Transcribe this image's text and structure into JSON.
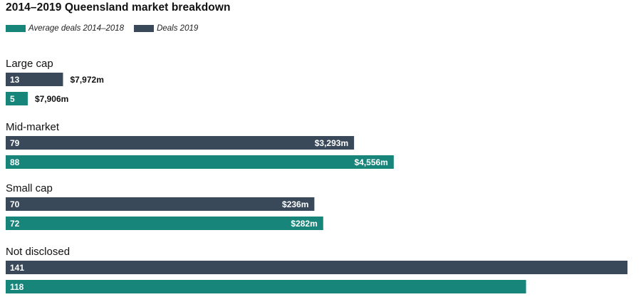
{
  "chart_data": {
    "type": "bar",
    "orientation": "horizontal",
    "title": "2014–2019 Queensland market breakdown",
    "legend_position": "top-left",
    "grid": false,
    "xlim": [
      0,
      141
    ],
    "series": [
      {
        "name": "Average deals 2014–2018",
        "color": "#17857a"
      },
      {
        "name": "Deals 2019",
        "color": "#39495a"
      }
    ],
    "categories": [
      {
        "label": "Large cap",
        "bars": [
          {
            "series": "Deals 2019",
            "count": 13,
            "count_label": "13",
            "value_label": "$7,972m"
          },
          {
            "series": "Average deals 2014–2018",
            "count": 5,
            "count_label": "5",
            "value_label": "$7,906m"
          }
        ]
      },
      {
        "label": "Mid-market",
        "bars": [
          {
            "series": "Deals 2019",
            "count": 79,
            "count_label": "79",
            "value_label": "$3,293m"
          },
          {
            "series": "Average deals 2014–2018",
            "count": 88,
            "count_label": "88",
            "value_label": "$4,556m"
          }
        ]
      },
      {
        "label": "Small cap",
        "bars": [
          {
            "series": "Deals 2019",
            "count": 70,
            "count_label": "70",
            "value_label": "$236m"
          },
          {
            "series": "Average deals 2014–2018",
            "count": 72,
            "count_label": "72",
            "value_label": "$282m"
          }
        ]
      },
      {
        "label": "Not disclosed",
        "bars": [
          {
            "series": "Deals 2019",
            "count": 141,
            "count_label": "141",
            "value_label": ""
          },
          {
            "series": "Average deals 2014–2018",
            "count": 118,
            "count_label": "118",
            "value_label": ""
          }
        ]
      }
    ]
  }
}
